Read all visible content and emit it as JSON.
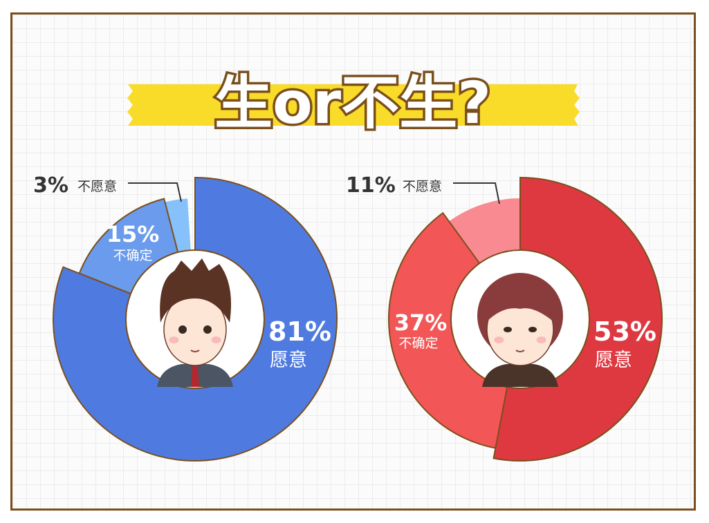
{
  "title": "生or不生?",
  "colors": {
    "frame": "#7a4f1c",
    "banner": "#f9dc2a",
    "outline": "#7a4f1c"
  },
  "chart_data": [
    {
      "type": "pie",
      "subject": "male-avatar",
      "slices": [
        {
          "label": "愿意",
          "value": 81,
          "value_label": "81%",
          "color": "#4f7be0"
        },
        {
          "label": "不确定",
          "value": 15,
          "value_label": "15%",
          "color": "#6a9bec"
        },
        {
          "label": "不愿意",
          "value": 3,
          "value_label": "3%",
          "color": "#86c1fb"
        }
      ]
    },
    {
      "type": "pie",
      "subject": "female-avatar",
      "slices": [
        {
          "label": "愿意",
          "value": 53,
          "value_label": "53%",
          "color": "#de3940"
        },
        {
          "label": "不确定",
          "value": 37,
          "value_label": "37%",
          "color": "#f35656"
        },
        {
          "label": "不愿意",
          "value": 11,
          "value_label": "11%",
          "color": "#fa8a92"
        }
      ]
    }
  ]
}
